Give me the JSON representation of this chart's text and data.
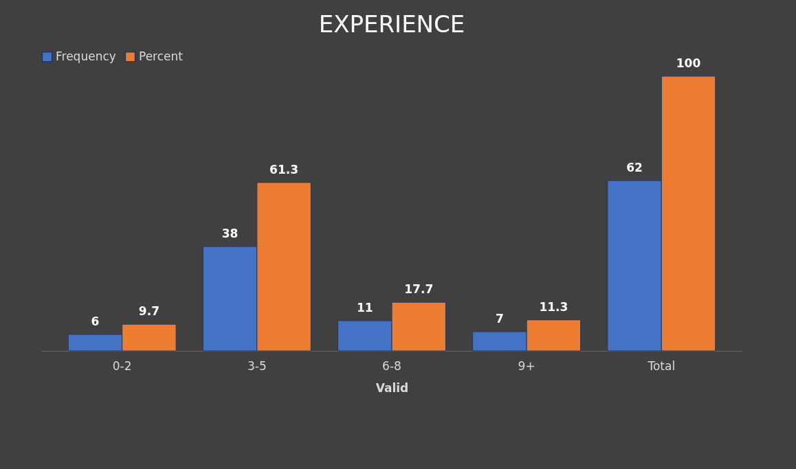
{
  "chart_data": {
    "type": "bar",
    "title": "EXPERIENCE",
    "xlabel": "Valid",
    "categories": [
      "0-2",
      "3-5",
      "6-8",
      "9+",
      "Total"
    ],
    "series": [
      {
        "name": "Frequency",
        "color": "#4472c4",
        "values": [
          6,
          38,
          11,
          7,
          62
        ]
      },
      {
        "name": "Percent",
        "color": "#ed7d31",
        "values": [
          9.7,
          61.3,
          17.7,
          11.3,
          100
        ]
      }
    ],
    "data_labels": true,
    "legend": "top",
    "grid": false
  }
}
